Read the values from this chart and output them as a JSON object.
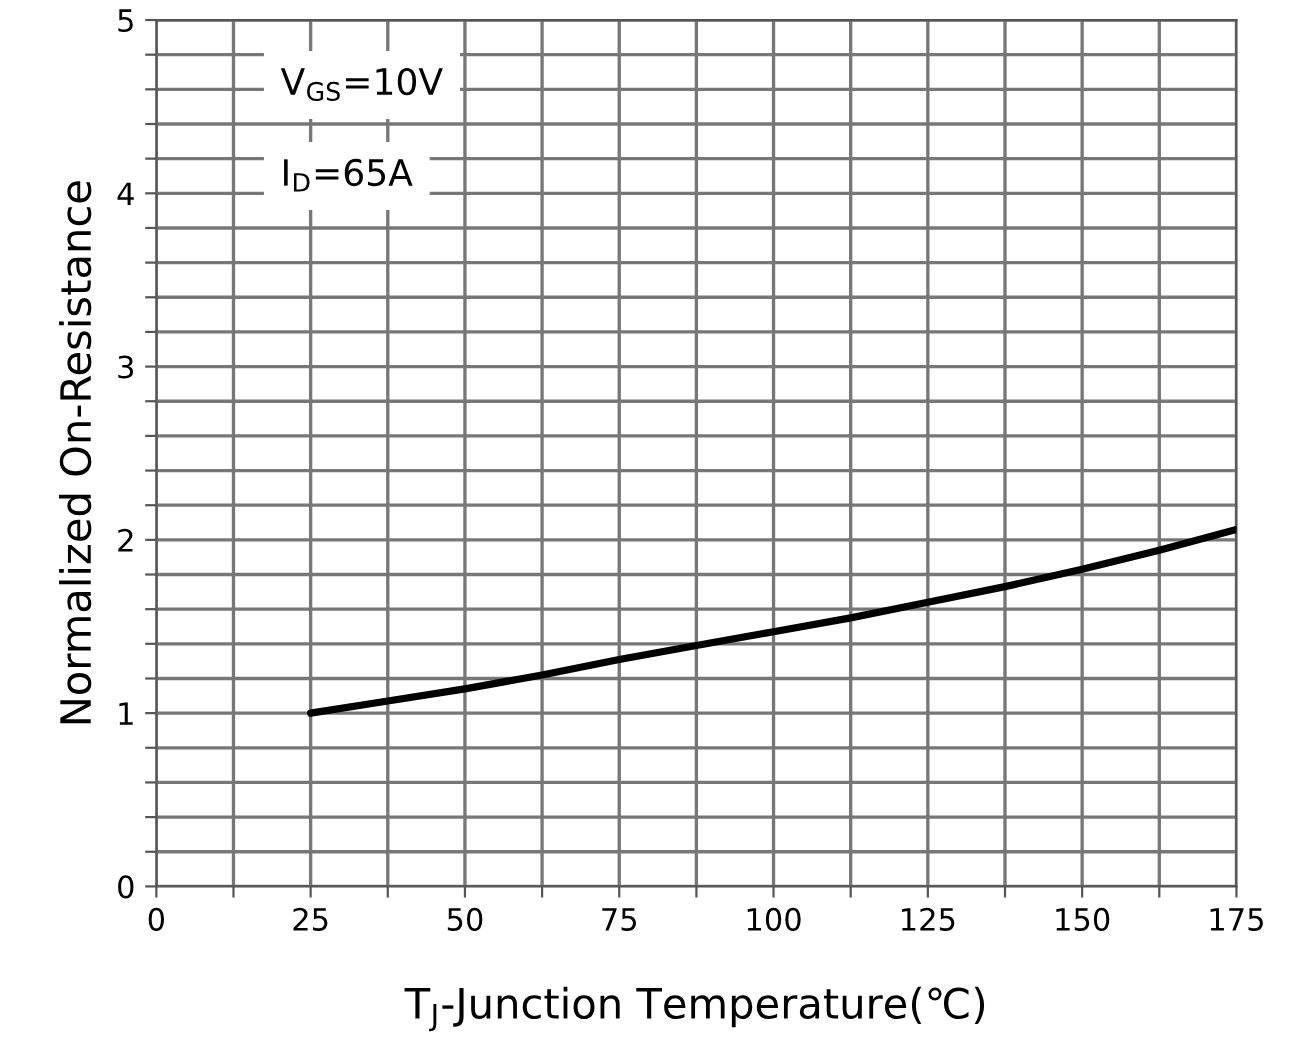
{
  "chart_data": {
    "type": "line",
    "xlabel": "T$_{J}$-Junction Temperature(℃)",
    "ylabel": "Normalized On-Resistance",
    "annotations": [
      "V$_{GS}$=10V",
      "I$_{D}$=65A"
    ],
    "series": [
      {
        "color": "#000000",
        "x": [
          25,
          37.5,
          50,
          62.5,
          75,
          87.5,
          100,
          112.5,
          125,
          137.5,
          150,
          162.5,
          175
        ],
        "values": [
          1.0,
          1.07,
          1.14,
          1.22,
          1.31,
          1.39,
          1.47,
          1.55,
          1.64,
          1.73,
          1.83,
          1.94,
          2.06
        ]
      }
    ],
    "xlim": [
      0,
      175
    ],
    "ylim": [
      0,
      5
    ],
    "xticks": [
      0,
      {
        "value": 12.5,
        "label": null
      },
      25,
      {
        "value": 37.5,
        "label": null
      },
      50,
      {
        "value": 62.5,
        "label": null
      },
      75,
      {
        "value": 87.5,
        "label": null
      },
      100,
      {
        "value": 112.5,
        "label": null
      },
      125,
      {
        "value": 137.5,
        "label": null
      },
      150,
      {
        "value": 162.5,
        "label": null
      },
      175
    ],
    "yticks": [
      0,
      {
        "value": 0.2,
        "label": null
      },
      {
        "value": 0.4,
        "label": null
      },
      {
        "value": 0.6,
        "label": null
      },
      {
        "value": 0.8,
        "label": null
      },
      1,
      {
        "value": 1.2,
        "label": null
      },
      {
        "value": 1.4,
        "label": null
      },
      {
        "value": 1.6,
        "label": null
      },
      {
        "value": 1.8,
        "label": null
      },
      2,
      {
        "value": 2.2,
        "label": null
      },
      {
        "value": 2.4,
        "label": null
      },
      {
        "value": 2.6,
        "label": null
      },
      {
        "value": 2.8,
        "label": null
      },
      3,
      {
        "value": 3.2,
        "label": null
      },
      {
        "value": 3.4,
        "label": null
      },
      {
        "value": 3.6,
        "label": null
      },
      {
        "value": 3.8,
        "label": null
      },
      4,
      {
        "value": 4.2,
        "label": null
      },
      {
        "value": 4.4,
        "label": null
      },
      {
        "value": 4.6,
        "label": null
      },
      {
        "value": 4.8,
        "label": null
      },
      5
    ],
    "grid": true,
    "marker": "none",
    "line_style": "solid"
  }
}
